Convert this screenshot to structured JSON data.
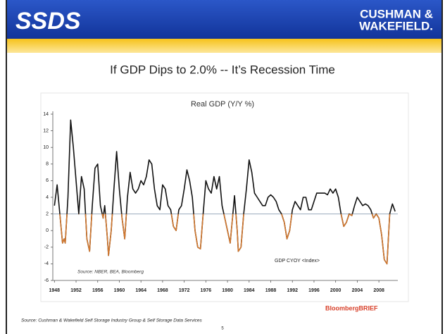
{
  "header": {
    "logo": "SSDS",
    "brand": [
      "CUSHMAN &",
      "WAKEFIELD."
    ]
  },
  "slide_title": "If GDP Dips to 2.0% -- It’s Recession Time",
  "chart_data": {
    "type": "line",
    "title": "Real GDP (Y/Y %)",
    "annotation": "Source: NBER, BEA, Bloomberg",
    "brand": "BloombergBRIEF",
    "threshold": 2,
    "below_color": "#d2782f",
    "threshold_color": "#9aaabb",
    "xlim": [
      1947.7,
      2011.5
    ],
    "xticks": [
      1948,
      1952,
      1956,
      1960,
      1964,
      1968,
      1972,
      1976,
      1980,
      1984,
      1988,
      1992,
      1996,
      2000,
      2004,
      2008
    ],
    "ylim": [
      -6,
      14
    ],
    "yticks": [
      -6,
      -4,
      -2,
      0,
      2,
      4,
      6,
      8,
      10,
      12,
      14
    ],
    "x": [
      1948,
      1948.5,
      1949,
      1949.5,
      1949.8,
      1950,
      1950.5,
      1951,
      1951.5,
      1952,
      1952.5,
      1953,
      1953.5,
      1954,
      1954.5,
      1955,
      1955.5,
      1956,
      1956.5,
      1957,
      1957.3,
      1957.8,
      1958,
      1958.5,
      1959,
      1959.5,
      1960,
      1960.5,
      1961,
      1961.5,
      1962,
      1962.5,
      1963,
      1963.5,
      1964,
      1964.5,
      1965,
      1965.5,
      1966,
      1966.5,
      1967,
      1967.5,
      1968,
      1968.5,
      1969,
      1969.5,
      1970,
      1970.5,
      1971,
      1971.5,
      1972,
      1972.5,
      1973,
      1973.5,
      1974,
      1974.5,
      1975,
      1975.5,
      1976,
      1976.5,
      1977,
      1977.5,
      1978,
      1978.5,
      1979,
      1979.5,
      1980,
      1980.5,
      1981,
      1981.3,
      1981.8,
      1982,
      1982.5,
      1983,
      1983.5,
      1984,
      1984.5,
      1985,
      1985.5,
      1986,
      1986.5,
      1987,
      1987.5,
      1988,
      1988.5,
      1989,
      1989.5,
      1990,
      1990.5,
      1991,
      1991.5,
      1992,
      1992.5,
      1993,
      1993.5,
      1994,
      1994.5,
      1995,
      1995.5,
      1996,
      1996.5,
      1997,
      1997.5,
      1998,
      1998.5,
      1999,
      1999.5,
      2000,
      2000.5,
      2001,
      2001.5,
      2002,
      2002.5,
      2003,
      2003.5,
      2004,
      2004.5,
      2005,
      2005.5,
      2006,
      2006.5,
      2007,
      2007.5,
      2008,
      2008.5,
      2009,
      2009.5,
      2010,
      2010.5,
      2011
    ],
    "series": [
      {
        "name": "GDP CYOY <Index>",
        "color": "#111111",
        "values": [
          3,
          5.5,
          2,
          -1.5,
          -1,
          -1.5,
          4,
          13.3,
          10,
          6,
          2,
          6.5,
          5,
          -1,
          -2.5,
          3,
          7.5,
          8,
          3,
          1.5,
          3,
          -1,
          -3,
          0,
          5,
          9.5,
          5,
          1.5,
          -1,
          4,
          7,
          5,
          4.5,
          5,
          6,
          5.5,
          6.5,
          8.5,
          8,
          5,
          3,
          2.5,
          5.5,
          5,
          3,
          2.5,
          0.5,
          0,
          2.5,
          3,
          5,
          7.3,
          6,
          4,
          0,
          -2,
          -2.2,
          2,
          6,
          5,
          4.5,
          6.5,
          5,
          6.5,
          3,
          1.5,
          0,
          -1.5,
          2,
          4.2,
          0,
          -2.5,
          -2,
          2,
          5,
          8.5,
          7,
          4.5,
          4,
          3.5,
          3,
          3,
          4,
          4.3,
          4,
          3.5,
          2.5,
          2,
          1,
          -1,
          0,
          2.5,
          3.5,
          3,
          2.5,
          4,
          4,
          2.5,
          2.5,
          3.5,
          4.5,
          4.5,
          4.5,
          4.5,
          4.3,
          5,
          4.5,
          5,
          4,
          2,
          0.5,
          1,
          2,
          1.8,
          3,
          4,
          3.5,
          3,
          3.2,
          3,
          2.5,
          1.5,
          2,
          1.5,
          -0.5,
          -3.5,
          -4,
          2,
          3.2,
          2.3
        ]
      }
    ]
  },
  "footer": {
    "source": "Source: Cushman & Wakefield Self Storage Industry Group & Self Storage Data Services",
    "page": "5"
  }
}
